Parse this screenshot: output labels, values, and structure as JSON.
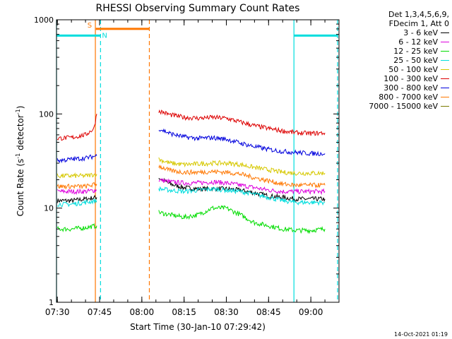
{
  "chart_data": {
    "type": "line",
    "title": "RHESSI Observing Summary Count Rates",
    "xlabel": "Start Time (30-Jan-10 07:29:42)",
    "ylabel": "Count Rate (s⁻¹ detector⁻¹)",
    "ylabel_parts": {
      "a": "Count Rate (s",
      "sup1": "-1",
      "b": " detector",
      "sup2": "-1",
      "c": ")"
    },
    "y_scale": "log",
    "ylim": [
      1,
      1000
    ],
    "y_ticks": [
      "1",
      "10",
      "100",
      "1000"
    ],
    "xlim": [
      "07:29:42",
      "09:10"
    ],
    "x_ticks": [
      "07:30",
      "07:45",
      "08:00",
      "08:15",
      "08:30",
      "08:45",
      "09:00"
    ],
    "grid": false,
    "legend_position": "right",
    "legend_header": [
      "Det 1,3,4,5,6,9,",
      "FDecim 1, Att 0"
    ],
    "series": [
      {
        "name": "3 - 6 keV",
        "color": "#000000",
        "segments": [
          {
            "x": [
              "07:30",
              "07:35",
              "07:40",
              "07:44"
            ],
            "y": [
              12,
              12,
              12.5,
              13
            ]
          },
          {
            "x": [
              "08:06",
              "08:10",
              "08:15",
              "08:20",
              "08:25",
              "08:30",
              "08:35",
              "08:40",
              "08:45",
              "08:50",
              "08:55",
              "09:00",
              "09:05"
            ],
            "y": [
              21,
              18,
              16.5,
              16,
              16,
              16,
              15.5,
              14.5,
              13.5,
              13,
              12.5,
              12.5,
              12.5
            ]
          }
        ]
      },
      {
        "name": "6 - 12 keV",
        "color": "#dd00dd",
        "segments": [
          {
            "x": [
              "07:30",
              "07:35",
              "07:40",
              "07:44"
            ],
            "y": [
              15,
              15,
              15,
              15.5
            ]
          },
          {
            "x": [
              "08:06",
              "08:10",
              "08:15",
              "08:20",
              "08:25",
              "08:30",
              "08:35",
              "08:40",
              "08:45",
              "08:50",
              "08:55",
              "09:00",
              "09:05"
            ],
            "y": [
              20,
              19,
              18.5,
              18.5,
              19,
              18.5,
              17.5,
              16.5,
              15.5,
              15,
              15,
              15,
              15
            ]
          }
        ]
      },
      {
        "name": "12 - 25 keV",
        "color": "#00dd00",
        "segments": [
          {
            "x": [
              "07:30",
              "07:35",
              "07:40",
              "07:44"
            ],
            "y": [
              6,
              6,
              6.2,
              6.5
            ]
          },
          {
            "x": [
              "08:06",
              "08:10",
              "08:15",
              "08:20",
              "08:25",
              "08:30",
              "08:35",
              "08:40",
              "08:45",
              "08:50",
              "08:55",
              "09:00",
              "09:05"
            ],
            "y": [
              9,
              8.5,
              8,
              8.5,
              10,
              10,
              8.5,
              7,
              6.5,
              6,
              5.8,
              5.8,
              6
            ]
          }
        ]
      },
      {
        "name": "25 - 50 keV",
        "color": "#00dddd",
        "segments": [
          {
            "x": [
              "07:30",
              "07:35",
              "07:40",
              "07:44"
            ],
            "y": [
              11,
              11,
              11.5,
              12
            ]
          },
          {
            "x": [
              "08:06",
              "08:10",
              "08:15",
              "08:20",
              "08:25",
              "08:30",
              "08:35",
              "08:40",
              "08:45",
              "08:50",
              "08:55",
              "09:00",
              "09:05"
            ],
            "y": [
              16,
              15.5,
              15,
              15.5,
              16,
              15.5,
              15,
              14,
              13,
              12,
              11.5,
              11.5,
              11.5
            ]
          }
        ]
      },
      {
        "name": "50 - 100 keV",
        "color": "#d6c800",
        "segments": [
          {
            "x": [
              "07:30",
              "07:35",
              "07:40",
              "07:44"
            ],
            "y": [
              22,
              22,
              22,
              23
            ]
          },
          {
            "x": [
              "08:06",
              "08:10",
              "08:15",
              "08:20",
              "08:25",
              "08:30",
              "08:35",
              "08:40",
              "08:45",
              "08:50",
              "08:55",
              "09:00",
              "09:05"
            ],
            "y": [
              33,
              30,
              29,
              29.5,
              30,
              30,
              29,
              27,
              25.5,
              24,
              23.5,
              23.5,
              23.5
            ]
          }
        ]
      },
      {
        "name": "100 - 300 keV",
        "color": "#dd0000",
        "segments": [
          {
            "x": [
              "07:30",
              "07:35",
              "07:40",
              "07:43",
              "07:44"
            ],
            "y": [
              55,
              56,
              60,
              70,
              100
            ]
          },
          {
            "x": [
              "08:06",
              "08:10",
              "08:15",
              "08:20",
              "08:25",
              "08:30",
              "08:35",
              "08:40",
              "08:45",
              "08:50",
              "08:55",
              "09:00",
              "09:05"
            ],
            "y": [
              108,
              98,
              92,
              90,
              92,
              90,
              82,
              75,
              70,
              66,
              63,
              62,
              63
            ]
          }
        ]
      },
      {
        "name": "300 - 800 keV",
        "color": "#0000dd",
        "segments": [
          {
            "x": [
              "07:30",
              "07:35",
              "07:40",
              "07:44"
            ],
            "y": [
              32,
              33,
              34,
              36
            ]
          },
          {
            "x": [
              "08:06",
              "08:10",
              "08:15",
              "08:20",
              "08:25",
              "08:30",
              "08:35",
              "08:40",
              "08:45",
              "08:50",
              "08:55",
              "09:00",
              "09:05"
            ],
            "y": [
              70,
              62,
              57,
              55,
              56,
              54,
              49,
              45,
              42,
              40,
              39,
              38,
              38
            ]
          }
        ]
      },
      {
        "name": "800 - 7000 keV",
        "color": "#ff7700",
        "segments": [
          {
            "x": [
              "07:30",
              "07:35",
              "07:40",
              "07:44"
            ],
            "y": [
              17,
              17,
              17,
              18
            ]
          },
          {
            "x": [
              "08:06",
              "08:10",
              "08:15",
              "08:20",
              "08:25",
              "08:30",
              "08:35",
              "08:40",
              "08:45",
              "08:50",
              "08:55",
              "09:00",
              "09:05"
            ],
            "y": [
              28,
              25,
              24,
              24,
              24.5,
              24,
              23,
              21,
              19.5,
              18,
              17.5,
              17.5,
              17.5
            ]
          }
        ]
      },
      {
        "name": "7000 - 15000 keV",
        "color": "#7a7a00",
        "segments": []
      }
    ],
    "flags": {
      "saa_label": "S",
      "night_label": "N",
      "saa_color": "#ff7700",
      "night_color": "#00dddd",
      "saa_interval": [
        "07:43:40",
        "08:02:40"
      ],
      "night_intervals": [
        [
          "07:29:42",
          "07:45:20"
        ],
        [
          "08:54:00",
          "09:09:30"
        ]
      ],
      "saa_flag_level": 800,
      "night_flag_level": 680
    },
    "event_lines": [
      {
        "time": "07:29:42",
        "color": "#00dddd",
        "style": "solid"
      },
      {
        "time": "07:43:30",
        "color": "#ff7700",
        "style": "solid"
      },
      {
        "time": "07:45:20",
        "color": "#00dddd",
        "style": "dashed"
      },
      {
        "time": "08:02:40",
        "color": "#ff7700",
        "style": "dashed"
      },
      {
        "time": "08:54:00",
        "color": "#00dddd",
        "style": "solid"
      },
      {
        "time": "09:09:30",
        "color": "#00dddd",
        "style": "dashed"
      }
    ]
  },
  "footer": {
    "timestamp": "14-Oct-2021 01:19"
  }
}
